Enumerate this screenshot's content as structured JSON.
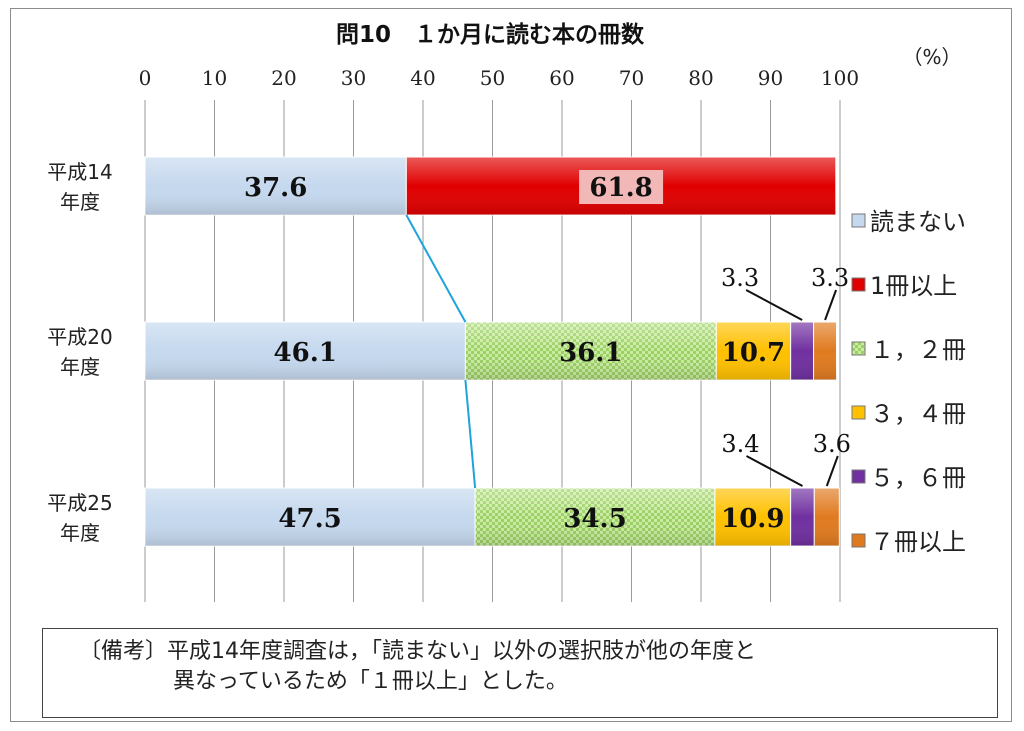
{
  "chart_data": {
    "type": "bar",
    "orientation": "horizontal",
    "stacked": true,
    "title": "問10　１か月に読む本の冊数",
    "unit_label": "（%）",
    "xlim": [
      0,
      100
    ],
    "x_ticks": [
      "0",
      "10",
      "20",
      "30",
      "40",
      "50",
      "60",
      "70",
      "80",
      "90",
      "100"
    ],
    "grid": true,
    "legend_position": "right",
    "categories": [
      "平成14年度",
      "平成20年度",
      "平成25年度"
    ],
    "category_lines": [
      [
        "平成14",
        "年度"
      ],
      [
        "平成20",
        "年度"
      ],
      [
        "平成25",
        "年度"
      ]
    ],
    "series": [
      {
        "name": "読まない",
        "color": "#c5d8ee",
        "values": [
          37.6,
          46.1,
          47.5
        ],
        "labels": [
          "37.6",
          "46.1",
          "47.5"
        ]
      },
      {
        "name": "1冊以上",
        "color": "#e00000",
        "values": [
          61.8,
          null,
          null
        ],
        "labels": [
          "61.8",
          "",
          ""
        ]
      },
      {
        "name": "１，２冊",
        "color": "#b6e08a",
        "values": [
          null,
          36.1,
          34.5
        ],
        "labels": [
          "",
          "36.1",
          "34.5"
        ]
      },
      {
        "name": "３，４冊",
        "color": "#ffc000",
        "values": [
          null,
          10.7,
          10.9
        ],
        "labels": [
          "",
          "10.7",
          "10.9"
        ]
      },
      {
        "name": "５，６冊",
        "color": "#7030a0",
        "values": [
          null,
          3.3,
          3.4
        ],
        "labels": [
          "",
          "3.3",
          "3.4"
        ]
      },
      {
        "name": "７冊以上",
        "color": "#e07a1f",
        "values": [
          null,
          3.3,
          3.6
        ],
        "labels": [
          "",
          "3.3",
          "3.6"
        ]
      }
    ]
  },
  "note": {
    "line1": "〔備考〕平成14年度調査は，「読まない」以外の選択肢が他の年度と",
    "line2": "異なっているため「１冊以上」とした。"
  }
}
